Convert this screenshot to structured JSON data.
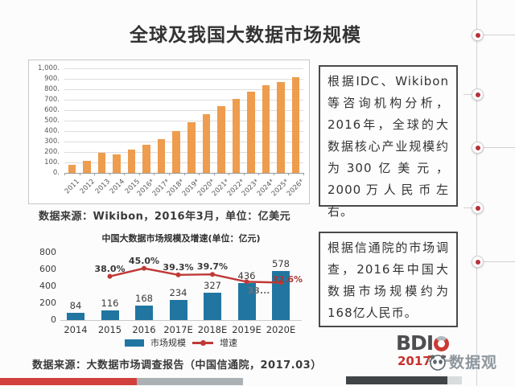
{
  "title": "全球及我国大数据市场规模",
  "captions": {
    "source1": "数据来源：Wikibon，2016年3月，单位：亿美元",
    "source2": "数据来源：大数据市场调查报告（中国信通院，2017.03）"
  },
  "info_boxes": [
    {
      "text": "根据IDC、Wikibon等咨询机构分析，2016年，全球的大数据核心产业规模约为300亿美元，2000万人民币左右。"
    },
    {
      "text": "根据信通院的市场调查，2016年中国大数据市场规模约为168亿人民币。"
    }
  ],
  "chart_data": [
    {
      "type": "bar",
      "title": "",
      "categories": [
        "2011",
        "2012",
        "2013",
        "2014",
        "2015",
        "2016*",
        "2017*",
        "2018*",
        "2019*",
        "2020*",
        "2021*",
        "2022*",
        "2023*",
        "2024*",
        "2025*",
        "2026*"
      ],
      "values": [
        75,
        115,
        190,
        178,
        222,
        268,
        325,
        400,
        485,
        562,
        640,
        710,
        778,
        835,
        872,
        915
      ],
      "ylabel": "亿美元",
      "ylim": [
        0,
        1000
      ],
      "ytick_labels": [
        "0.",
        "100.",
        "200.",
        "300.",
        "400.",
        "500.",
        "600.",
        "700.",
        "800.",
        "900.",
        "1,000."
      ],
      "grid": true,
      "bar_color": "#EE9C4D"
    },
    {
      "type": "bar+line",
      "title": "中国大数据市场规模及增速(单位：亿元)",
      "categories": [
        "2014",
        "2015",
        "2016",
        "2017E",
        "2018E",
        "2019E",
        "2020E"
      ],
      "yticks": [
        0,
        200,
        400,
        600,
        800
      ],
      "ylim": [
        0,
        800
      ],
      "legend_position": "bottom",
      "series": [
        {
          "name": "市场规模",
          "type": "bar",
          "color": "#2176A1",
          "values": [
            84,
            116,
            168,
            234,
            327,
            436,
            578
          ]
        },
        {
          "name": "增速",
          "type": "line",
          "color": "#BF3936",
          "values": [
            null,
            38.0,
            45.0,
            39.3,
            39.7,
            33.3,
            32.6
          ],
          "point_labels": [
            "",
            "38.0%",
            "45.0%",
            "39.3%",
            "39.7%",
            "33...",
            "32.6%"
          ],
          "label_colors": [
            "",
            "#383838",
            "#383838",
            "#383838",
            "#383838",
            "#707070",
            "#A53734"
          ]
        }
      ]
    }
  ],
  "logos": {
    "bdic_bd": "BD",
    "bdic_i": "I",
    "bdic_year": "2017",
    "shujuguan": "数据观"
  },
  "colors": {
    "global_bar": "#EE9C4D",
    "china_bar": "#2176A1",
    "growth_line": "#BF3936",
    "footer_red": "#D1403C",
    "timeline_dot": "#B5323B"
  }
}
